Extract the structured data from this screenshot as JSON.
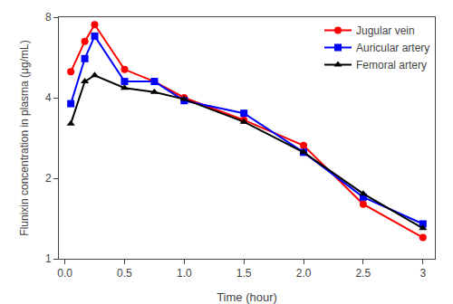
{
  "chart_data": {
    "type": "line",
    "x": [
      0.05,
      0.167,
      0.25,
      0.5,
      0.75,
      1.0,
      1.5,
      2.0,
      2.5,
      3.0
    ],
    "series": [
      {
        "name": "Jugular vein",
        "color": "#FF0000",
        "marker": "circle",
        "values": [
          5.0,
          6.5,
          7.5,
          5.1,
          4.6,
          4.0,
          3.3,
          2.65,
          1.6,
          1.2
        ]
      },
      {
        "name": "Auricular artery",
        "color": "#0000FF",
        "marker": "square",
        "values": [
          3.8,
          5.6,
          6.8,
          4.6,
          4.6,
          3.9,
          3.5,
          2.5,
          1.7,
          1.35
        ]
      },
      {
        "name": "Femoral artery",
        "color": "#000000",
        "marker": "triangle-up",
        "values": [
          3.2,
          4.6,
          4.85,
          4.35,
          4.2,
          3.95,
          3.25,
          2.5,
          1.75,
          1.3
        ]
      }
    ],
    "x_label": "Time (hour)",
    "y_label": "Flunixin concentration in plasma (μg/mL)",
    "log": "y",
    "xlim": [
      -0.05,
      3.1
    ],
    "xticks": [
      {
        "value": 0.0,
        "label": "0.0"
      },
      0.5,
      {
        "value": 1.0,
        "label": "1.0"
      },
      1.5,
      {
        "value": 2.0,
        "label": "2.0"
      },
      2.5,
      3
    ],
    "ylim": [
      1,
      8
    ],
    "yticks": [
      1,
      2,
      4,
      8
    ],
    "grid": false,
    "legend": "upper right"
  }
}
